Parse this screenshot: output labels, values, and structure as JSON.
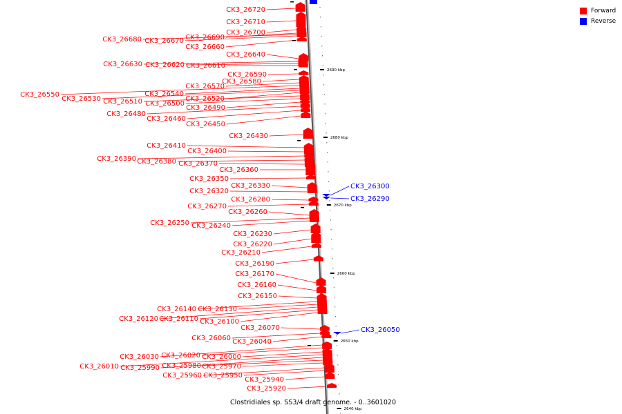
{
  "legend": {
    "forward_label": "Forward",
    "reverse_label": "Reverse",
    "forward_color": "#ff0000",
    "reverse_color": "#0000ff"
  },
  "caption": "Clostridiales sp. SS3/4 draft genome. - 0..3601020",
  "scale_ticks": [
    "2690 kbp",
    "2680 kbp",
    "2670 kbp",
    "2660 kbp",
    "2650 kbp",
    "2640 kbp"
  ],
  "genes": [
    {
      "label": "CK3_26720",
      "strand": "forward"
    },
    {
      "label": "CK3_26710",
      "strand": "forward"
    },
    {
      "label": "CK3_26700",
      "strand": "forward"
    },
    {
      "label": "CK3_26690",
      "strand": "forward"
    },
    {
      "label": "CK3_26680",
      "strand": "forward"
    },
    {
      "label": "CK3_26670",
      "strand": "forward"
    },
    {
      "label": "CK3_26660",
      "strand": "forward"
    },
    {
      "label": "CK3_26640",
      "strand": "forward"
    },
    {
      "label": "CK3_26630",
      "strand": "forward"
    },
    {
      "label": "CK3_26620",
      "strand": "forward"
    },
    {
      "label": "CK3_26610",
      "strand": "forward"
    },
    {
      "label": "CK3_26590",
      "strand": "forward"
    },
    {
      "label": "CK3_26580",
      "strand": "forward"
    },
    {
      "label": "CK3_26570",
      "strand": "forward"
    },
    {
      "label": "CK3_26550",
      "strand": "forward"
    },
    {
      "label": "CK3_26540",
      "strand": "forward"
    },
    {
      "label": "CK3_26530",
      "strand": "forward"
    },
    {
      "label": "CK3_26520",
      "strand": "forward"
    },
    {
      "label": "CK3_26510",
      "strand": "forward"
    },
    {
      "label": "CK3_26500",
      "strand": "forward"
    },
    {
      "label": "CK3_26490",
      "strand": "forward"
    },
    {
      "label": "CK3_26480",
      "strand": "forward"
    },
    {
      "label": "CK3_26460",
      "strand": "forward"
    },
    {
      "label": "CK3_26450",
      "strand": "forward"
    },
    {
      "label": "CK3_26430",
      "strand": "forward"
    },
    {
      "label": "CK3_26410",
      "strand": "forward"
    },
    {
      "label": "CK3_26400",
      "strand": "forward"
    },
    {
      "label": "CK3_26390",
      "strand": "forward"
    },
    {
      "label": "CK3_26380",
      "strand": "forward"
    },
    {
      "label": "CK3_26370",
      "strand": "forward"
    },
    {
      "label": "CK3_26360",
      "strand": "forward"
    },
    {
      "label": "CK3_26350",
      "strand": "forward"
    },
    {
      "label": "CK3_26330",
      "strand": "forward"
    },
    {
      "label": "CK3_26320",
      "strand": "forward"
    },
    {
      "label": "CK3_26300",
      "strand": "reverse"
    },
    {
      "label": "CK3_26290",
      "strand": "reverse"
    },
    {
      "label": "CK3_26280",
      "strand": "forward"
    },
    {
      "label": "CK3_26270",
      "strand": "forward"
    },
    {
      "label": "CK3_26260",
      "strand": "forward"
    },
    {
      "label": "CK3_26250",
      "strand": "forward"
    },
    {
      "label": "CK3_26240",
      "strand": "forward"
    },
    {
      "label": "CK3_26230",
      "strand": "forward"
    },
    {
      "label": "CK3_26220",
      "strand": "forward"
    },
    {
      "label": "CK3_26210",
      "strand": "forward"
    },
    {
      "label": "CK3_26190",
      "strand": "forward"
    },
    {
      "label": "CK3_26170",
      "strand": "forward"
    },
    {
      "label": "CK3_26160",
      "strand": "forward"
    },
    {
      "label": "CK3_26150",
      "strand": "forward"
    },
    {
      "label": "CK3_26140",
      "strand": "forward"
    },
    {
      "label": "CK3_26130",
      "strand": "forward"
    },
    {
      "label": "CK3_26120",
      "strand": "forward"
    },
    {
      "label": "CK3_26110",
      "strand": "forward"
    },
    {
      "label": "CK3_26100",
      "strand": "forward"
    },
    {
      "label": "CK3_26070",
      "strand": "forward"
    },
    {
      "label": "CK3_26060",
      "strand": "forward"
    },
    {
      "label": "CK3_26050",
      "strand": "reverse"
    },
    {
      "label": "CK3_26040",
      "strand": "forward"
    },
    {
      "label": "CK3_26030",
      "strand": "forward"
    },
    {
      "label": "CK3_26020",
      "strand": "forward"
    },
    {
      "label": "CK3_26000",
      "strand": "forward"
    },
    {
      "label": "CK3_26010",
      "strand": "forward"
    },
    {
      "label": "CK3_25990",
      "strand": "forward"
    },
    {
      "label": "CK3_25980",
      "strand": "forward"
    },
    {
      "label": "CK3_25970",
      "strand": "forward"
    },
    {
      "label": "CK3_25960",
      "strand": "forward"
    },
    {
      "label": "CK3_25950",
      "strand": "forward"
    },
    {
      "label": "CK3_25940",
      "strand": "forward"
    },
    {
      "label": "CK3_25920",
      "strand": "forward"
    }
  ]
}
